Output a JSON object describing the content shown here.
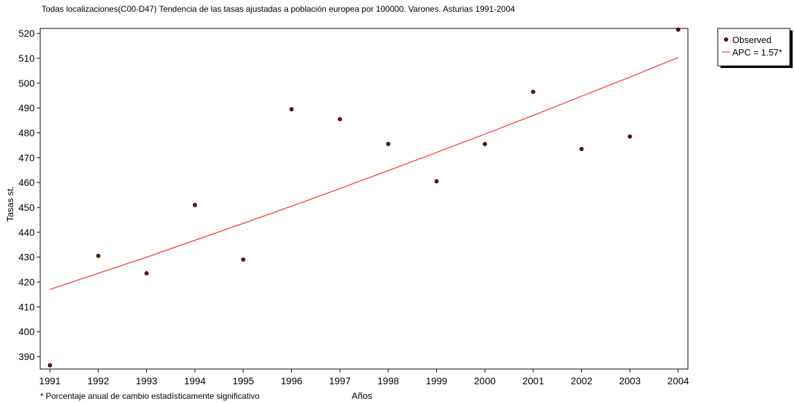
{
  "chart_data": {
    "type": "scatter",
    "title": "Todas localizaciones(C00-D47) Tendencia de las tasas ajustadas a población europea por 100000. Varones. Asturias 1991-2004",
    "xlabel": "Años",
    "ylabel": "Tasas st.",
    "footnote": "* Porcentaje anual de cambio estadísticamente significativo",
    "xlim": [
      1991,
      2004
    ],
    "ylim": [
      385,
      522
    ],
    "x_ticks": [
      1991,
      1992,
      1993,
      1994,
      1995,
      1996,
      1997,
      1998,
      1999,
      2000,
      2001,
      2002,
      2003,
      2004
    ],
    "y_ticks": [
      390,
      400,
      410,
      420,
      430,
      440,
      450,
      460,
      470,
      480,
      490,
      500,
      510,
      520
    ],
    "legend_position": "top-right",
    "series": [
      {
        "name": "Observed",
        "kind": "points",
        "color": "#8b0000",
        "x": [
          1991,
          1992,
          1993,
          1994,
          1995,
          1996,
          1997,
          1998,
          1999,
          2000,
          2001,
          2002,
          2003,
          2004
        ],
        "y": [
          386.5,
          430.5,
          423.5,
          451,
          429,
          489.5,
          485.5,
          475.5,
          460.5,
          475.5,
          496.5,
          473.5,
          478.5,
          521.5
        ]
      },
      {
        "name": "APC = 1.57*",
        "kind": "line",
        "color": "#ff3333",
        "x": [
          1991,
          1992,
          1993,
          1994,
          1995,
          1996,
          1997,
          1998,
          1999,
          2000,
          2001,
          2002,
          2003,
          2004
        ],
        "y": [
          417,
          423.5,
          430,
          436.8,
          443.6,
          450.5,
          457.6,
          464.8,
          472.1,
          479.5,
          487,
          494.7,
          502.4,
          510.3
        ]
      }
    ]
  }
}
